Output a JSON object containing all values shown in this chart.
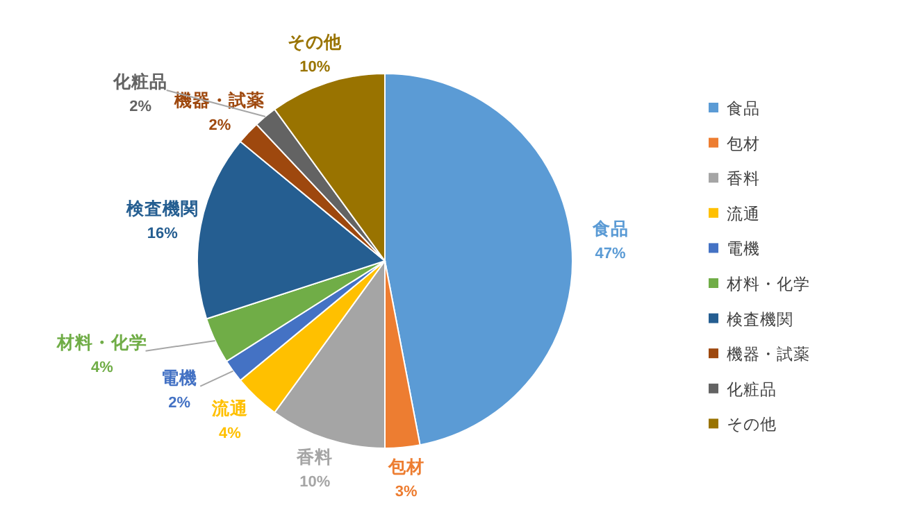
{
  "chart_data": {
    "type": "pie",
    "categories": [
      "食品",
      "包材",
      "香料",
      "流通",
      "電機",
      "材料・化学",
      "検査機関",
      "機器・試薬",
      "化粧品",
      "その他"
    ],
    "values": [
      47,
      3,
      10,
      4,
      2,
      4,
      16,
      2,
      2,
      10
    ],
    "value_labels": [
      "47%",
      "3%",
      "10%",
      "4%",
      "2%",
      "4%",
      "16%",
      "2%",
      "2%",
      "10%"
    ],
    "colors": [
      "#5b9bd5",
      "#ed7d31",
      "#a5a5a5",
      "#ffc000",
      "#4472c4",
      "#70ad47",
      "#255e91",
      "#9e480e",
      "#636363",
      "#997300"
    ],
    "legend": "right"
  }
}
